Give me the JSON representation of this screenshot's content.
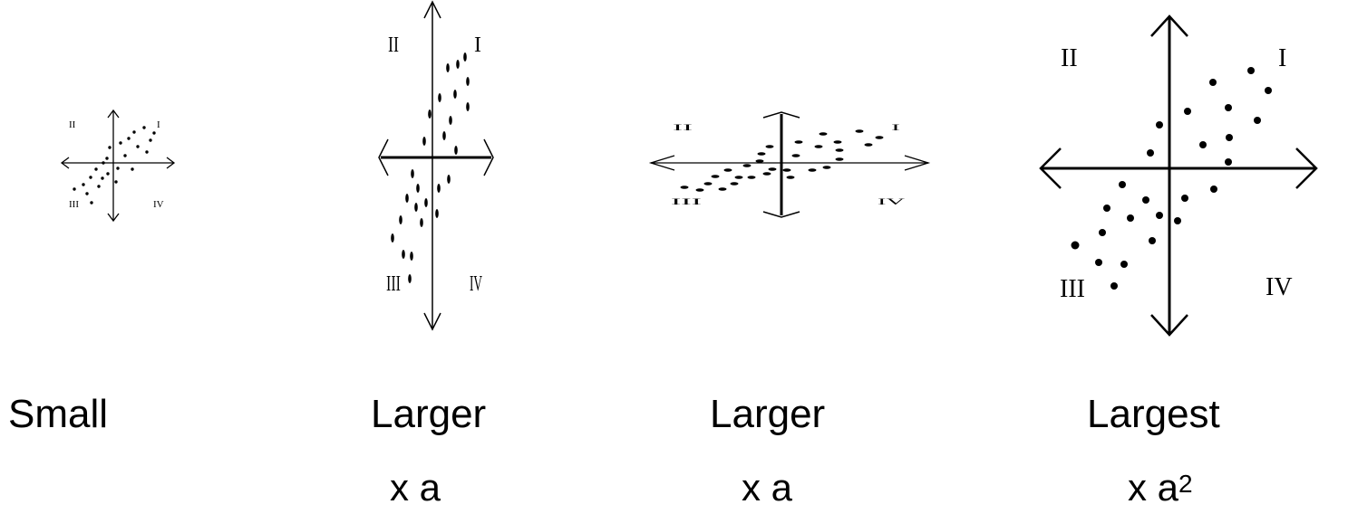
{
  "panels": [
    {
      "caption": "Small",
      "multiplier": "",
      "exponent": "",
      "quadrants": {
        "I": "I",
        "II": "II",
        "III": "III",
        "IV": "IV"
      }
    },
    {
      "caption": "Larger",
      "multiplier": "x a",
      "exponent": "",
      "quadrants": {
        "I": "I",
        "II": "II",
        "III": "III",
        "IV": "IV"
      }
    },
    {
      "caption": "Larger",
      "multiplier": "x a",
      "exponent": "",
      "quadrants": {
        "I": "I",
        "II": "II",
        "III": "III",
        "IV": "IV"
      }
    },
    {
      "caption": "Largest",
      "multiplier": "x a",
      "exponent": "2",
      "quadrants": {
        "I": "I",
        "II": "II",
        "III": "III",
        "IV": "IV"
      }
    }
  ]
}
